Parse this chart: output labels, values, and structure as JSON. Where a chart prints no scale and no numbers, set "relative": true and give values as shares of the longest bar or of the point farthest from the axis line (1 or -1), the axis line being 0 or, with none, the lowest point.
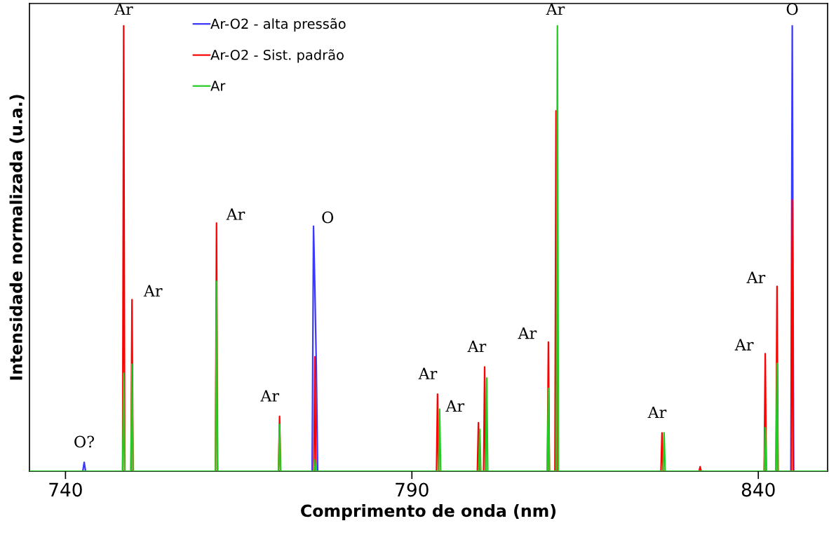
{
  "chart_data": {
    "type": "line",
    "relative": true,
    "xlabel": "Comprimento de onda (nm)",
    "ylabel": "Intensidade normalizada (u.a.)",
    "xlim": [
      734.8,
      850
    ],
    "xticks": [
      740,
      790,
      840
    ],
    "grid": false,
    "legend": "top",
    "line_style": "solid",
    "marker": "none",
    "series": [
      {
        "name": "Ar-O2 - alta pressão",
        "color": "#3a3aff",
        "x": [
          734.8,
          742.5,
          742.7,
          742.9,
          775.6,
          775.8,
          776.0,
          776.2,
          776.4,
          844.7,
          844.9,
          845.1,
          850
        ],
        "values": [
          0,
          0,
          0.02,
          0,
          0,
          0.55,
          0.41,
          0.24,
          0,
          0,
          1.0,
          0,
          0
        ]
      },
      {
        "name": "Ar-O2 - Sist. padrão",
        "color": "#ff0000",
        "x": [
          734.8,
          748.25,
          748.4,
          748.55,
          749.45,
          749.6,
          749.75,
          761.65,
          761.8,
          761.95,
          770.75,
          770.9,
          771.05,
          775.85,
          776.0,
          776.15,
          793.55,
          793.7,
          793.85,
          799.45,
          799.6,
          799.75,
          800.35,
          800.5,
          800.65,
          809.55,
          809.7,
          809.85,
          810.65,
          810.8,
          810.95,
          825.95,
          826.1,
          826.25,
          831.45,
          831.6,
          831.75,
          840.85,
          841.0,
          841.15,
          842.55,
          842.7,
          842.85,
          844.75,
          844.9,
          845.05,
          850
        ],
        "values": [
          0,
          0,
          1.0,
          0,
          0,
          0.385,
          0,
          0,
          0.557,
          0,
          0,
          0.123,
          0,
          0,
          0.257,
          0,
          0,
          0.173,
          0,
          0,
          0.109,
          0,
          0,
          0.234,
          0,
          0,
          0.29,
          0,
          0,
          0.809,
          0,
          0,
          0.086,
          0,
          0,
          0.01,
          0,
          0,
          0.264,
          0,
          0,
          0.415,
          0,
          0,
          0.609,
          0,
          0
        ]
      },
      {
        "name": "Ar",
        "color": "#22cc22",
        "x": [
          734.8,
          748.25,
          748.4,
          748.55,
          749.45,
          749.6,
          749.75,
          761.65,
          761.8,
          761.95,
          770.75,
          770.9,
          771.05,
          775.85,
          776.0,
          776.15,
          793.85,
          794.0,
          794.15,
          799.65,
          799.8,
          799.95,
          800.65,
          800.8,
          800.95,
          809.55,
          809.7,
          809.85,
          810.85,
          811.0,
          811.15,
          826.25,
          826.4,
          826.55,
          840.85,
          841.0,
          841.15,
          842.55,
          842.7,
          842.85,
          850
        ],
        "values": [
          0,
          0,
          0.22,
          0,
          0,
          0.24,
          0,
          0,
          0.426,
          0,
          0,
          0.105,
          0,
          0,
          0.025,
          0,
          0,
          0.139,
          0,
          0,
          0.094,
          0,
          0,
          0.209,
          0,
          0,
          0.186,
          0,
          0,
          1.0,
          0,
          0,
          0.086,
          0,
          0,
          0.098,
          0,
          0,
          0.242,
          0,
          0
        ]
      }
    ],
    "annotations": [
      {
        "text": "O?",
        "x": 742.7,
        "y": 0.02
      },
      {
        "text": "Ar",
        "x": 748.4,
        "y": 1.0
      },
      {
        "text": "Ar",
        "x": 749.6,
        "y": 0.385
      },
      {
        "text": "Ar",
        "x": 761.8,
        "y": 0.557
      },
      {
        "text": "Ar",
        "x": 770.9,
        "y": 0.123
      },
      {
        "text": "O",
        "x": 775.8,
        "y": 0.55
      },
      {
        "text": "Ar",
        "x": 793.7,
        "y": 0.173
      },
      {
        "text": "Ar",
        "x": 799.6,
        "y": 0.109
      },
      {
        "text": "Ar",
        "x": 800.5,
        "y": 0.234
      },
      {
        "text": "Ar",
        "x": 809.7,
        "y": 0.29
      },
      {
        "text": "Ar",
        "x": 811.0,
        "y": 1.0
      },
      {
        "text": "Ar",
        "x": 826.1,
        "y": 0.086
      },
      {
        "text": "Ar",
        "x": 841.0,
        "y": 0.264
      },
      {
        "text": "Ar",
        "x": 842.7,
        "y": 0.415
      },
      {
        "text": "O",
        "x": 844.9,
        "y": 1.0
      }
    ]
  }
}
